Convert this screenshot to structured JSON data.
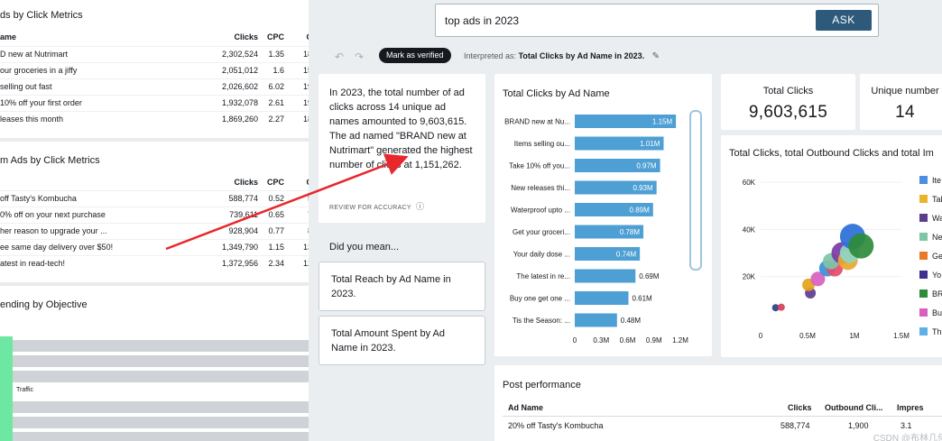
{
  "left": {
    "panel1": {
      "title": "ds by Click Metrics",
      "headers": [
        "ame",
        "Clicks",
        "CPC",
        "C"
      ],
      "rows": [
        [
          "D new at Nutrimart",
          "2,302,524",
          "1.35",
          "18"
        ],
        [
          "our groceries in a jiffy",
          "2,051,012",
          "1.6",
          "15"
        ],
        [
          "selling out fast",
          "2,026,602",
          "6.02",
          "19"
        ],
        [
          "10% off your first order",
          "1,932,078",
          "2.61",
          "19"
        ],
        [
          "leases this month",
          "1,869,260",
          "2.27",
          "18"
        ]
      ]
    },
    "panel2": {
      "title": "m Ads by Click Metrics",
      "headers": [
        "",
        "Clicks",
        "CPC",
        "C"
      ],
      "rows": [
        [
          "off Tasty's Kombucha",
          "588,774",
          "0.52",
          "5"
        ],
        [
          "0% off on your next purchase",
          "739,611",
          "0.65",
          "7"
        ],
        [
          "her reason to upgrade your ...",
          "928,904",
          "0.77",
          "8"
        ],
        [
          "ee same day delivery over $50!",
          "1,349,790",
          "1.15",
          "13"
        ],
        [
          "atest in read-tech!",
          "1,372,956",
          "2.34",
          "12"
        ]
      ]
    },
    "panel3": {
      "title": "ending by Objective",
      "sankey_label": "Traffic"
    }
  },
  "search": {
    "query": "top ads in 2023",
    "ask_label": "ASK"
  },
  "toolbar": {
    "undo_icon": "↶",
    "redo_icon": "↷",
    "verified_label": "Mark as verified",
    "interpreted_prefix": "Interpreted as:",
    "interpreted_value": "Total Clicks by Ad Name in 2023.",
    "edit_icon": "✎"
  },
  "answer": {
    "text": "In 2023, the total number of ad clicks across 14 unique ad names amounted to 9,603,615. The ad named \"BRAND new at Nutrimart\" generated the highest number of clicks at 1,151,262.",
    "review_label": "REVIEW FOR ACCURACY",
    "info_icon": "ⓘ"
  },
  "did_you_mean": {
    "label": "Did you mean...",
    "suggestions": [
      "Total Reach by Ad Name in 2023.",
      "Total Amount Spent by Ad Name in 2023."
    ]
  },
  "kpis": [
    {
      "label": "Total Clicks",
      "value": "9,603,615"
    },
    {
      "label": "Unique number",
      "value": "14"
    }
  ],
  "post": {
    "title": "Post performance",
    "headers": [
      "Ad Name",
      "Clicks",
      "Outbound Cli...",
      "Impres"
    ],
    "row": [
      "20% off Tasty's Kombucha",
      "588,774",
      "1,900",
      "3.1"
    ]
  },
  "watermark": "CSDN @布林几何",
  "colors": {
    "bar": "#4d9fd4",
    "ask": "#2d5a7b",
    "arrow": "#e8272b"
  },
  "chart_data": [
    {
      "type": "bar",
      "orientation": "horizontal",
      "title": "Total Clicks by Ad Name",
      "categories": [
        "BRAND new at Nu...",
        "Items selling ou...",
        "Take 10% off you...",
        "New releases thi...",
        "Waterproof upto ...",
        "Get your groceri...",
        "Your daily dose ...",
        "The latest in re...",
        "Buy one get one ...",
        "Tis the Season: ..."
      ],
      "values": [
        1.15,
        1.01,
        0.97,
        0.93,
        0.89,
        0.78,
        0.74,
        0.69,
        0.61,
        0.48
      ],
      "value_labels": [
        "1.15M",
        "1.01M",
        "0.97M",
        "0.93M",
        "0.89M",
        "0.78M",
        "0.74M",
        "0.69M",
        "0.61M",
        "0.48M"
      ],
      "xlim": [
        0,
        1.2
      ],
      "xticks": [
        "0",
        "0.3M",
        "0.6M",
        "0.9M",
        "1.2M"
      ],
      "unit": "M"
    },
    {
      "type": "scatter",
      "title": "Total Clicks, total Outbound Clicks and total Im",
      "xlim": [
        0,
        1.5
      ],
      "ylim": [
        0,
        60
      ],
      "xticks": [
        "0",
        "0.5M",
        "1M",
        "1.5M"
      ],
      "yticks": [
        "20K",
        "40K",
        "60K"
      ],
      "points": [
        {
          "x": 0.16,
          "y": 6.8,
          "size": 4,
          "color": "#2c3f87"
        },
        {
          "x": 0.22,
          "y": 7.0,
          "size": 4,
          "color": "#d63e5a"
        },
        {
          "x": 0.53,
          "y": 13.0,
          "size": 6,
          "color": "#5e3c8e"
        },
        {
          "x": 0.51,
          "y": 16.5,
          "size": 7,
          "color": "#e3a21a"
        },
        {
          "x": 0.61,
          "y": 19.0,
          "size": 8,
          "color": "#d85fc0"
        },
        {
          "x": 0.71,
          "y": 23.5,
          "size": 9,
          "color": "#3a8fd8"
        },
        {
          "x": 0.79,
          "y": 23.5,
          "size": 9,
          "color": "#e84a6a"
        },
        {
          "x": 0.75,
          "y": 26.5,
          "size": 9,
          "color": "#7ec5a8"
        },
        {
          "x": 0.87,
          "y": 30.0,
          "size": 12,
          "color": "#7a3aa8"
        },
        {
          "x": 0.93,
          "y": 27.0,
          "size": 11,
          "color": "#e8a830"
        },
        {
          "x": 0.95,
          "y": 30.0,
          "size": 11,
          "color": "#8fd6c4"
        },
        {
          "x": 0.98,
          "y": 37.0,
          "size": 14,
          "color": "#2a6fd8"
        },
        {
          "x": 1.07,
          "y": 33.0,
          "size": 14,
          "color": "#2e8b3a"
        }
      ],
      "legend": [
        {
          "label": "Ite",
          "color": "#4a8fe0"
        },
        {
          "label": "Tak",
          "color": "#e8b52a"
        },
        {
          "label": "Wa",
          "color": "#5a3e8e"
        },
        {
          "label": "Ne",
          "color": "#7ec5a8"
        },
        {
          "label": "Ge",
          "color": "#e87a2a"
        },
        {
          "label": "Yo",
          "color": "#3d3290"
        },
        {
          "label": "BR",
          "color": "#2e8b3a"
        },
        {
          "label": "Bu",
          "color": "#d85fc0"
        },
        {
          "label": "Th",
          "color": "#5fb0e6"
        }
      ]
    }
  ]
}
